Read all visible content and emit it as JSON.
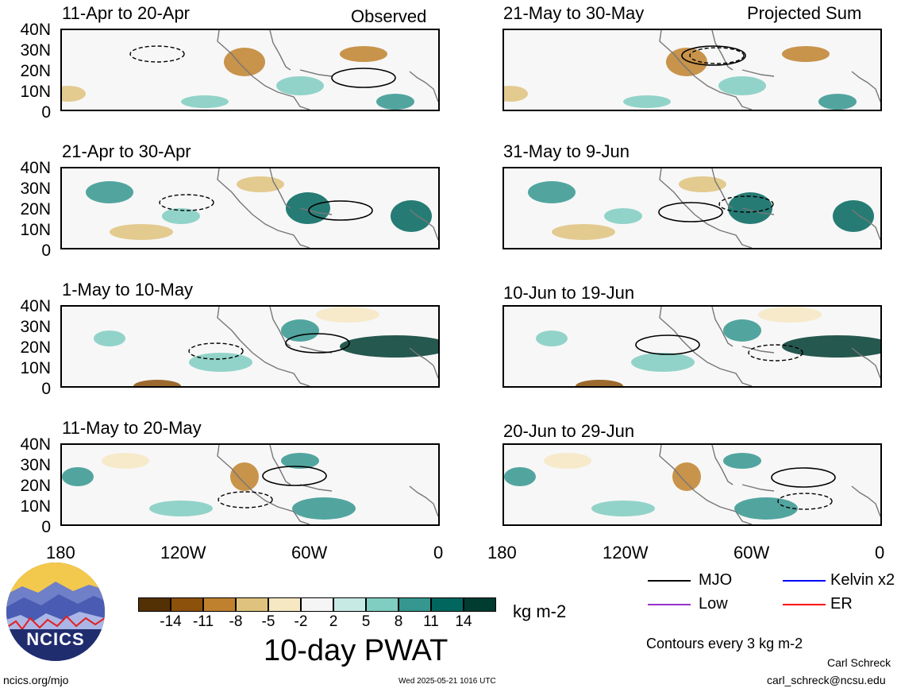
{
  "header_observed": "Observed",
  "header_projected": "Projected Sum",
  "panels": [
    {
      "col": 0,
      "row": 0,
      "date": "11-Apr to 20-Apr"
    },
    {
      "col": 0,
      "row": 1,
      "date": "21-Apr to 30-Apr"
    },
    {
      "col": 0,
      "row": 2,
      "date": "1-May to 10-May"
    },
    {
      "col": 0,
      "row": 3,
      "date": "11-May to 20-May"
    },
    {
      "col": 1,
      "row": 0,
      "date": "21-May to 30-May"
    },
    {
      "col": 1,
      "row": 1,
      "date": "31-May to 9-Jun"
    },
    {
      "col": 1,
      "row": 2,
      "date": "10-Jun to 19-Jun"
    },
    {
      "col": 1,
      "row": 3,
      "date": "20-Jun to 29-Jun"
    }
  ],
  "y_ticks": [
    "40N",
    "30N",
    "20N",
    "10N",
    "0"
  ],
  "x_ticks": [
    "180",
    "120W",
    "60W",
    "0"
  ],
  "colorbar": {
    "colors": [
      "#543005",
      "#8c510a",
      "#bf812d",
      "#dfc27d",
      "#f6e8c3",
      "#f5f5f5",
      "#c7eae5",
      "#80cdc1",
      "#35978f",
      "#01665e",
      "#003c30"
    ],
    "labels": [
      "-14",
      "-11",
      "-8",
      "-5",
      "-2",
      "2",
      "5",
      "8",
      "11",
      "14"
    ],
    "units": "kg m-2"
  },
  "variable_title": "10-day PWAT",
  "legend": [
    {
      "label": "MJO",
      "color": "#000000"
    },
    {
      "label": "Kelvin x2",
      "color": "#0000ff"
    },
    {
      "label": "Low",
      "color": "#9932cc"
    },
    {
      "label": "ER",
      "color": "#ff0000"
    }
  ],
  "contour_note": "Contours every 3 kg m-2",
  "author": "Carl Schreck",
  "email": "carl_schreck@ncsu.edu",
  "website": "ncics.org/mjo",
  "timestamp": "Wed 2025-05-21 1016 UTC",
  "logo_text": "NCICS"
}
